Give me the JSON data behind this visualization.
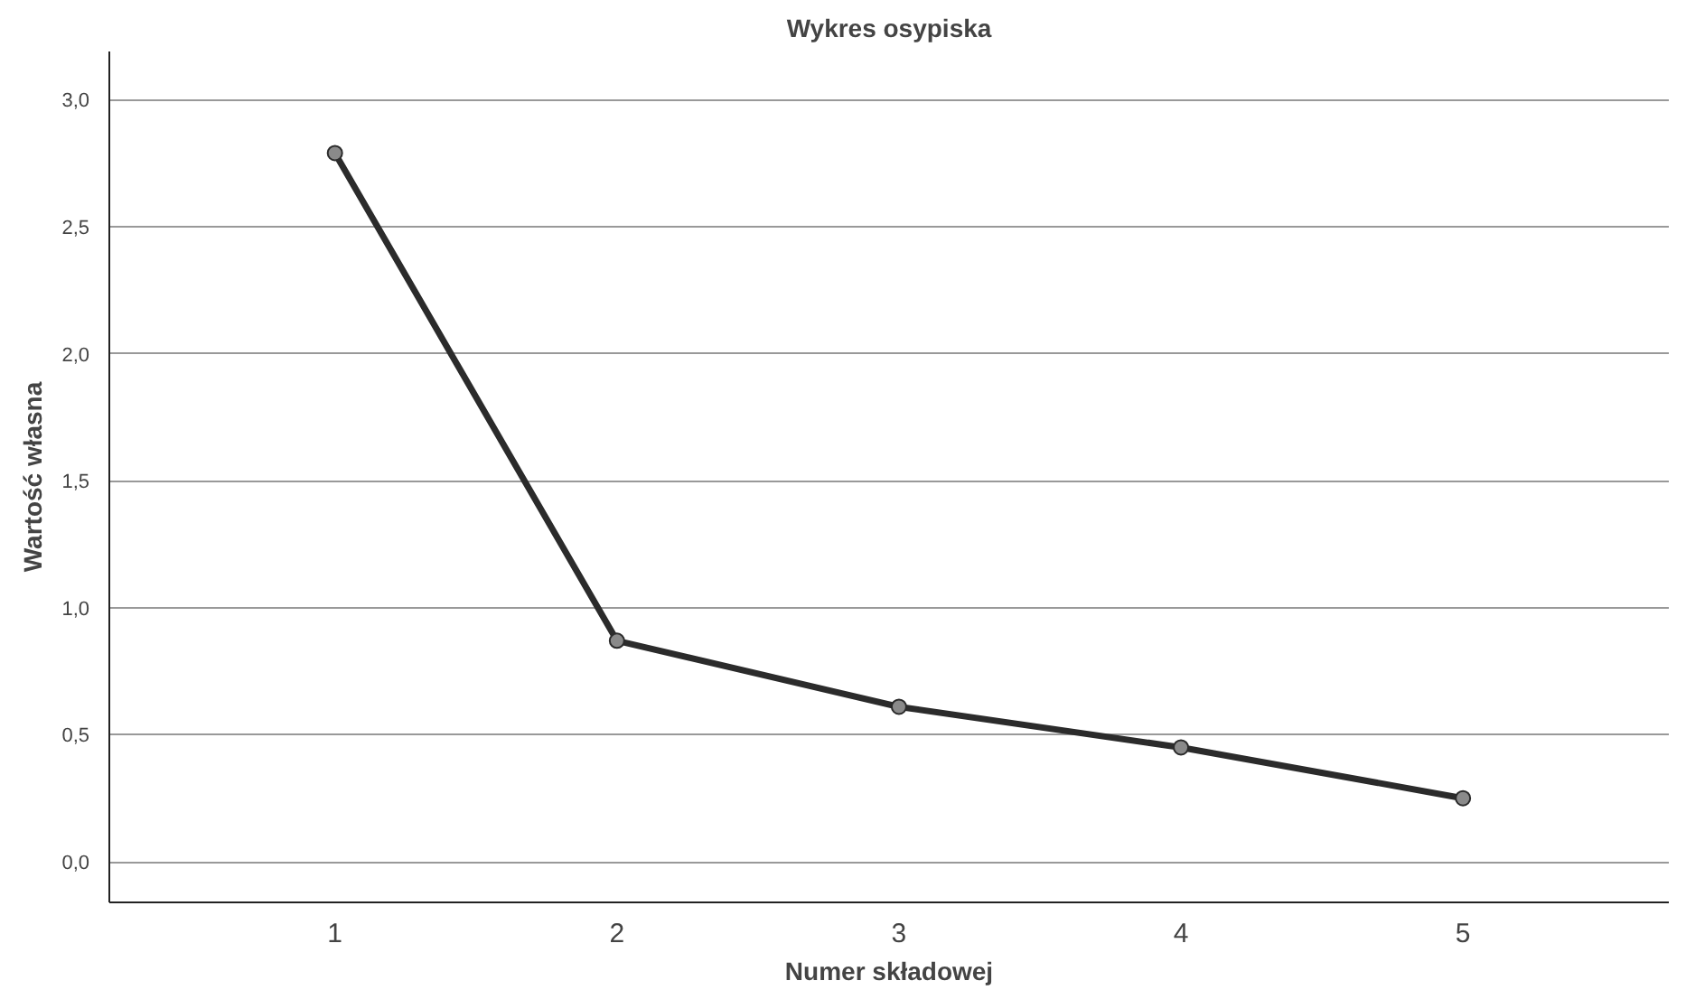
{
  "chart_data": {
    "type": "line",
    "title": "Wykres osypiska",
    "xlabel": "Numer składowej",
    "ylabel": "Wartość własna",
    "x": [
      1,
      2,
      3,
      4,
      5
    ],
    "series": [
      {
        "color": "#2b2b2b",
        "values": [
          2.79,
          0.87,
          0.61,
          0.45,
          0.25
        ]
      }
    ],
    "xlim": [
      0.2,
      5.73
    ],
    "xticks": [
      1,
      2,
      3,
      4,
      5
    ],
    "ylim": [
      -0.16,
      3.19
    ],
    "yticks": [
      {
        "value": 0,
        "label": "0,0"
      },
      {
        "value": 0.5,
        "label": "0,5"
      },
      {
        "value": 1,
        "label": "1,0"
      },
      {
        "value": 1.5,
        "label": "1,5"
      },
      {
        "value": 2,
        "label": "2,0"
      },
      {
        "value": 2.5,
        "label": "2,5"
      },
      {
        "value": 3,
        "label": "3,0"
      }
    ],
    "grid": "y",
    "marker": "circle",
    "line_style": "solid"
  }
}
